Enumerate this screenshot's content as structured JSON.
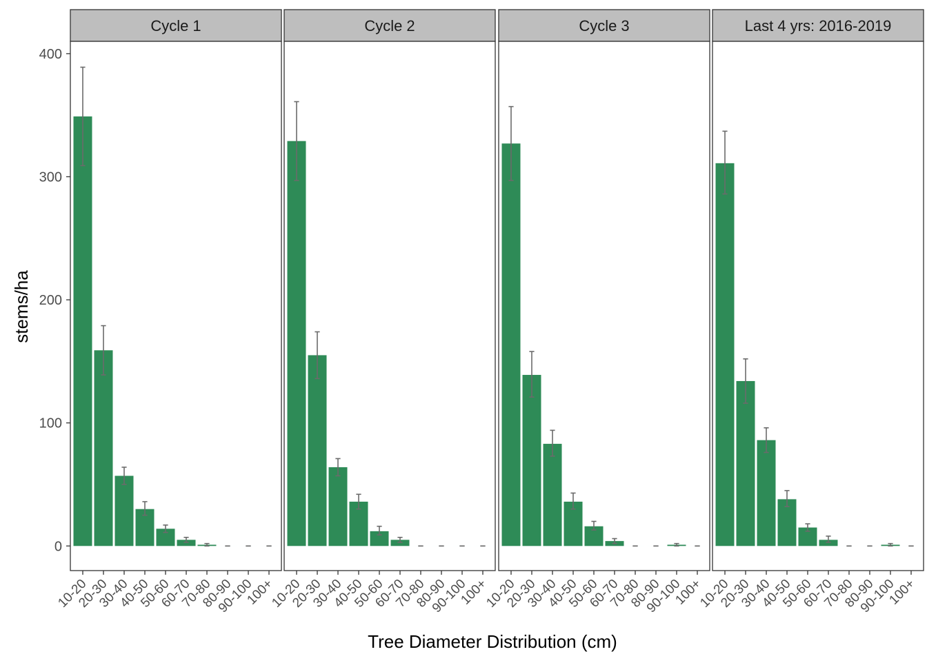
{
  "chart_data": {
    "type": "bar",
    "xlabel": "Tree Diameter Distribution (cm)",
    "ylabel": "stems/ha",
    "ylim": [
      -20,
      410
    ],
    "y_ticks": [
      0,
      100,
      200,
      300,
      400
    ],
    "grid": false,
    "bar_color": "#2e8b57",
    "errorbar_color": "#6b6b6b",
    "strip_color": "#bebebe",
    "categories": [
      "10-20",
      "20-30",
      "30-40",
      "40-50",
      "50-60",
      "60-70",
      "70-80",
      "80-90",
      "90-100",
      "100+"
    ],
    "panels": [
      {
        "title": "Cycle 1",
        "values": [
          349,
          159,
          57,
          30,
          14,
          5,
          1,
          0,
          0,
          0
        ],
        "err_low": [
          309,
          139,
          50,
          25,
          11,
          3,
          0,
          0,
          0,
          0
        ],
        "err_high": [
          389,
          179,
          64,
          36,
          17,
          7,
          2,
          0,
          0,
          0
        ]
      },
      {
        "title": "Cycle 2",
        "values": [
          329,
          155,
          64,
          36,
          12,
          5,
          0,
          0,
          0,
          0
        ],
        "err_low": [
          297,
          136,
          57,
          30,
          9,
          3,
          0,
          0,
          0,
          0
        ],
        "err_high": [
          361,
          174,
          71,
          42,
          16,
          7,
          0,
          0,
          0,
          0
        ]
      },
      {
        "title": "Cycle 3",
        "values": [
          327,
          139,
          83,
          36,
          16,
          4,
          0,
          0,
          1,
          0
        ],
        "err_low": [
          297,
          121,
          73,
          30,
          13,
          2,
          0,
          0,
          0,
          0
        ],
        "err_high": [
          357,
          158,
          94,
          43,
          20,
          6,
          0,
          0,
          2,
          0
        ]
      },
      {
        "title": "Last 4 yrs: 2016-2019",
        "values": [
          311,
          134,
          86,
          38,
          15,
          5,
          0,
          0,
          1,
          0
        ],
        "err_low": [
          286,
          116,
          76,
          32,
          12,
          3,
          0,
          0,
          0,
          0
        ],
        "err_high": [
          337,
          152,
          96,
          45,
          18,
          8,
          0,
          0,
          2,
          0
        ]
      }
    ]
  }
}
